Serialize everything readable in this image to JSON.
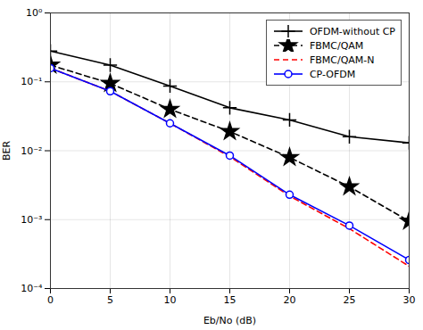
{
  "chart_data": {
    "type": "line",
    "xlabel": "Eb/No (dB)",
    "ylabel": "BER",
    "x": [
      0,
      5,
      10,
      15,
      20,
      25,
      30
    ],
    "series": [
      {
        "name": "OFDM-without CP",
        "color": "#000000",
        "marker": "plus",
        "line_style": "solid",
        "values": [
          0.28,
          0.175,
          0.087,
          0.042,
          0.028,
          0.016,
          0.013
        ]
      },
      {
        "name": "FBMC/QAM",
        "color": "#000000",
        "marker": "star",
        "line_style": "dashed",
        "values": [
          0.175,
          0.095,
          0.04,
          0.019,
          0.008,
          0.003,
          0.00095
        ]
      },
      {
        "name": "FBMC/QAM-N",
        "color": "#ff0000",
        "marker": "none",
        "line_style": "dashed",
        "values": [
          0.158,
          0.073,
          0.025,
          0.0082,
          0.0022,
          0.00074,
          0.00021
        ]
      },
      {
        "name": "CP-OFDM",
        "color": "#0000ff",
        "marker": "circle",
        "line_style": "solid",
        "values": [
          0.158,
          0.073,
          0.025,
          0.0085,
          0.0023,
          0.00082,
          0.00026
        ]
      }
    ],
    "xlim": [
      0,
      30
    ],
    "xticks": [
      0,
      5,
      10,
      15,
      20,
      25,
      30
    ],
    "ylim": [
      0.0001,
      1
    ],
    "yticks": [
      {
        "value": 0.0001,
        "label": "10⁻⁴"
      },
      {
        "value": 0.001,
        "label": "10⁻³"
      },
      {
        "value": 0.01,
        "label": "10⁻²"
      },
      {
        "value": 0.1,
        "label": "10⁻¹"
      },
      {
        "value": 1,
        "label": "10⁰"
      }
    ],
    "log": "y",
    "grid": true,
    "legend": "upper right"
  }
}
